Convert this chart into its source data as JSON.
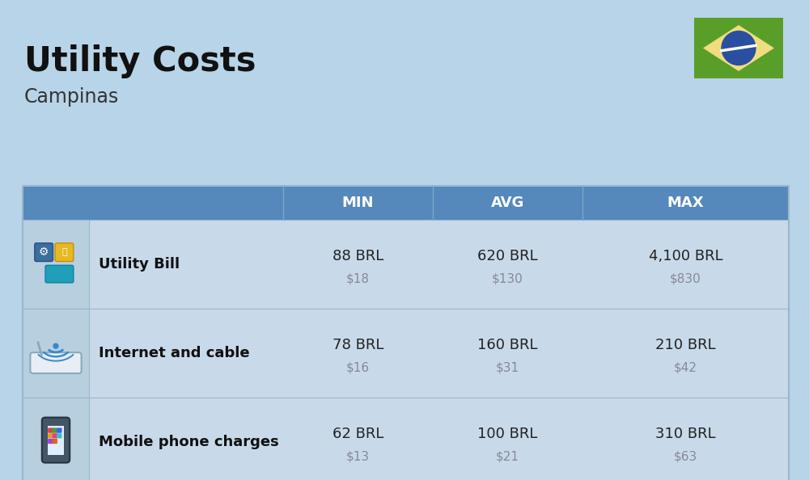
{
  "title": "Utility Costs",
  "subtitle": "Campinas",
  "bg_color": "#b8d4e8",
  "header_bg_color": "#5588bb",
  "header_text_color": "#ffffff",
  "row_bg_color": "#c8daea",
  "icon_col_bg": "#b8cfe0",
  "divider_color": "#9ab8cc",
  "header_labels": [
    "MIN",
    "AVG",
    "MAX"
  ],
  "rows": [
    {
      "label": "Utility Bill",
      "min_brl": "88 BRL",
      "min_usd": "$18",
      "avg_brl": "620 BRL",
      "avg_usd": "$130",
      "max_brl": "4,100 BRL",
      "max_usd": "$830",
      "icon": "utility"
    },
    {
      "label": "Internet and cable",
      "min_brl": "78 BRL",
      "min_usd": "$16",
      "avg_brl": "160 BRL",
      "avg_usd": "$31",
      "max_brl": "210 BRL",
      "max_usd": "$42",
      "icon": "internet"
    },
    {
      "label": "Mobile phone charges",
      "min_brl": "62 BRL",
      "min_usd": "$13",
      "avg_brl": "100 BRL",
      "avg_usd": "$21",
      "max_brl": "310 BRL",
      "max_usd": "$63",
      "icon": "mobile"
    }
  ],
  "usd_color": "#888899",
  "label_color": "#111111",
  "brl_color": "#222222",
  "title_color": "#111111",
  "subtitle_color": "#333333",
  "flag_green": "#5a9e2a",
  "flag_yellow": "#f0dd80",
  "flag_blue": "#2a4fa0",
  "flag_white": "#ffffff"
}
